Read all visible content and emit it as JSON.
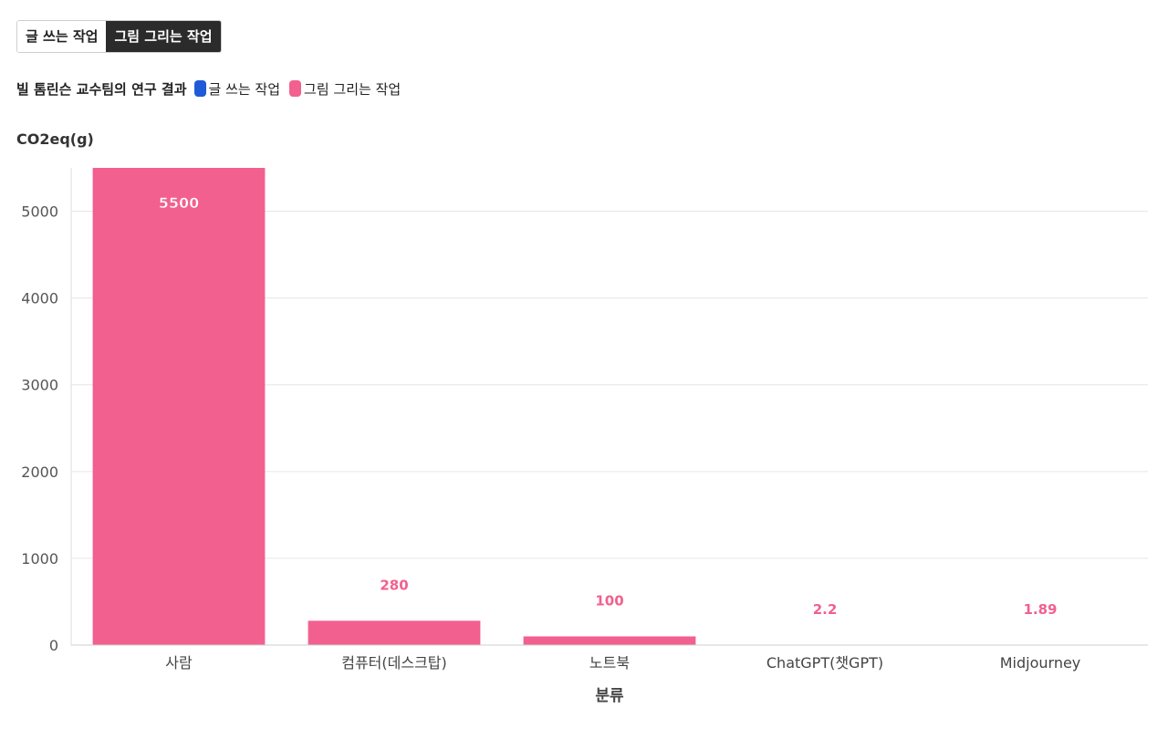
{
  "tabs": [
    {
      "label": "글 쓰는 작업",
      "active": false
    },
    {
      "label": "그림 그리는 작업",
      "active": true
    }
  ],
  "legend": {
    "title": "빌 톰린슨 교수팀의 연구 결과",
    "items": [
      {
        "label": "글 쓰는 작업",
        "color": "#1f5bd8"
      },
      {
        "label": "그림 그리는 작업",
        "color": "#f2608f"
      }
    ]
  },
  "chart_data": {
    "type": "bar",
    "ylabel": "CO2eq(g)",
    "xlabel": "분류",
    "categories": [
      "사람",
      "컴퓨터(데스크탑)",
      "노트북",
      "ChatGPT(챗GPT)",
      "Midjourney"
    ],
    "series": [
      {
        "name": "그림 그리는 작업",
        "values": [
          5500,
          280,
          100,
          2.2,
          1.89
        ],
        "labels": [
          "5500",
          "280",
          "100",
          "2.2",
          "1.89"
        ],
        "color": "#f2608f"
      }
    ],
    "ylim": [
      0,
      5500
    ],
    "yticks": [
      0,
      1000,
      2000,
      3000,
      4000,
      5000
    ],
    "grid": true
  }
}
